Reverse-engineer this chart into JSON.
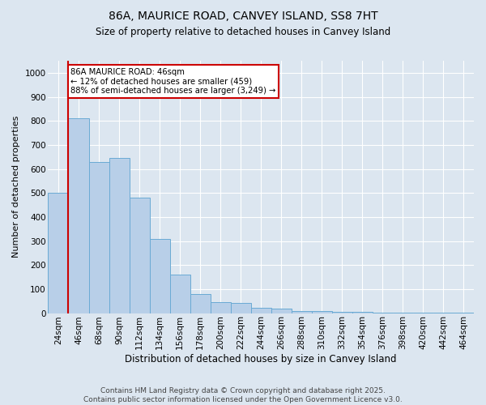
{
  "title": "86A, MAURICE ROAD, CANVEY ISLAND, SS8 7HT",
  "subtitle": "Size of property relative to detached houses in Canvey Island",
  "xlabel": "Distribution of detached houses by size in Canvey Island",
  "ylabel": "Number of detached properties",
  "footer_line1": "Contains HM Land Registry data © Crown copyright and database right 2025.",
  "footer_line2": "Contains public sector information licensed under the Open Government Licence v3.0.",
  "bar_labels": [
    "24sqm",
    "46sqm",
    "68sqm",
    "90sqm",
    "112sqm",
    "134sqm",
    "156sqm",
    "178sqm",
    "200sqm",
    "222sqm",
    "244sqm",
    "266sqm",
    "288sqm",
    "310sqm",
    "332sqm",
    "354sqm",
    "376sqm",
    "398sqm",
    "420sqm",
    "442sqm",
    "464sqm"
  ],
  "bar_values": [
    500,
    810,
    630,
    645,
    480,
    310,
    160,
    78,
    47,
    42,
    22,
    20,
    10,
    7,
    5,
    4,
    2,
    1,
    1,
    0.5,
    0.5
  ],
  "bar_color": "#b8cfe8",
  "bar_edge_color": "#6aaad4",
  "property_line_index": 1,
  "annotation_title": "86A MAURICE ROAD: 46sqm",
  "annotation_line1": "← 12% of detached houses are smaller (459)",
  "annotation_line2": "88% of semi-detached houses are larger (3,249) →",
  "annotation_box_facecolor": "#ffffff",
  "annotation_box_edgecolor": "#cc0000",
  "red_line_color": "#cc0000",
  "ylim": [
    0,
    1050
  ],
  "yticks": [
    0,
    100,
    200,
    300,
    400,
    500,
    600,
    700,
    800,
    900,
    1000
  ],
  "background_color": "#dce6f0",
  "grid_color": "#ffffff",
  "title_fontsize": 10,
  "subtitle_fontsize": 8.5,
  "ylabel_fontsize": 8,
  "xlabel_fontsize": 8.5,
  "tick_fontsize": 7.5,
  "footer_fontsize": 6.5
}
